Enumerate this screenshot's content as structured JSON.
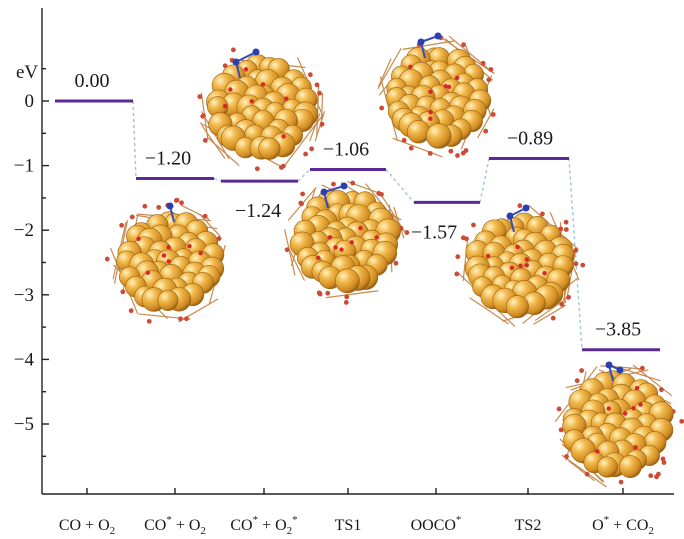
{
  "chart_data": {
    "type": "energy-profile",
    "ylabel": "eV",
    "ylim": [
      -6,
      0.5
    ],
    "yticks": [
      0,
      -1,
      -2,
      -3,
      -4,
      -5
    ],
    "ytick_labels": [
      "0",
      "−1",
      "−2",
      "−3",
      "−4",
      "−5"
    ],
    "categories": [
      {
        "main": "CO + O",
        "sub": "2",
        "sup": ""
      },
      {
        "main": "CO",
        "sup": "*",
        "rest": " + O",
        "sub": "2"
      },
      {
        "main": "CO",
        "sup": "*",
        "rest": " + O",
        "sub": "2",
        "sup2": "*"
      },
      {
        "main": "TS1"
      },
      {
        "main": "OOCO",
        "sup": "*"
      },
      {
        "main": "TS2"
      },
      {
        "main": "O",
        "sup": "*",
        "rest": " + CO",
        "sub": "2"
      }
    ],
    "values": [
      0.0,
      -1.2,
      -1.24,
      -1.06,
      -1.57,
      -0.89,
      -3.85
    ],
    "value_labels": [
      "0.00",
      "−1.20",
      "−1.24",
      "−1.06",
      "−1.57",
      "−0.89",
      "−3.85"
    ],
    "level_color": "#5b2a96",
    "connector_color": "#9fc1e0",
    "grid": false,
    "legend": "none"
  },
  "structures": [
    {
      "state": "CO*",
      "adsorbate": "CO",
      "position": "below"
    },
    {
      "state": "CO* + O2*",
      "adsorbate": "CO+O2",
      "position": "above"
    },
    {
      "state": "TS1",
      "adsorbate": "CO+O2",
      "position": "below"
    },
    {
      "state": "OOCO*",
      "adsorbate": "OOCO",
      "position": "above"
    },
    {
      "state": "TS2",
      "adsorbate": "OOCO",
      "position": "below"
    },
    {
      "state": "O* + CO2",
      "adsorbate": "CO2",
      "position": "below"
    }
  ],
  "colors": {
    "gold": "#e3a53a",
    "gold_light": "#fbe3a0",
    "gold_dark": "#a86814",
    "oxygen": "#d9262b",
    "nitrogen_blue": "#2b3fae",
    "support_red": "#cc4a36"
  }
}
